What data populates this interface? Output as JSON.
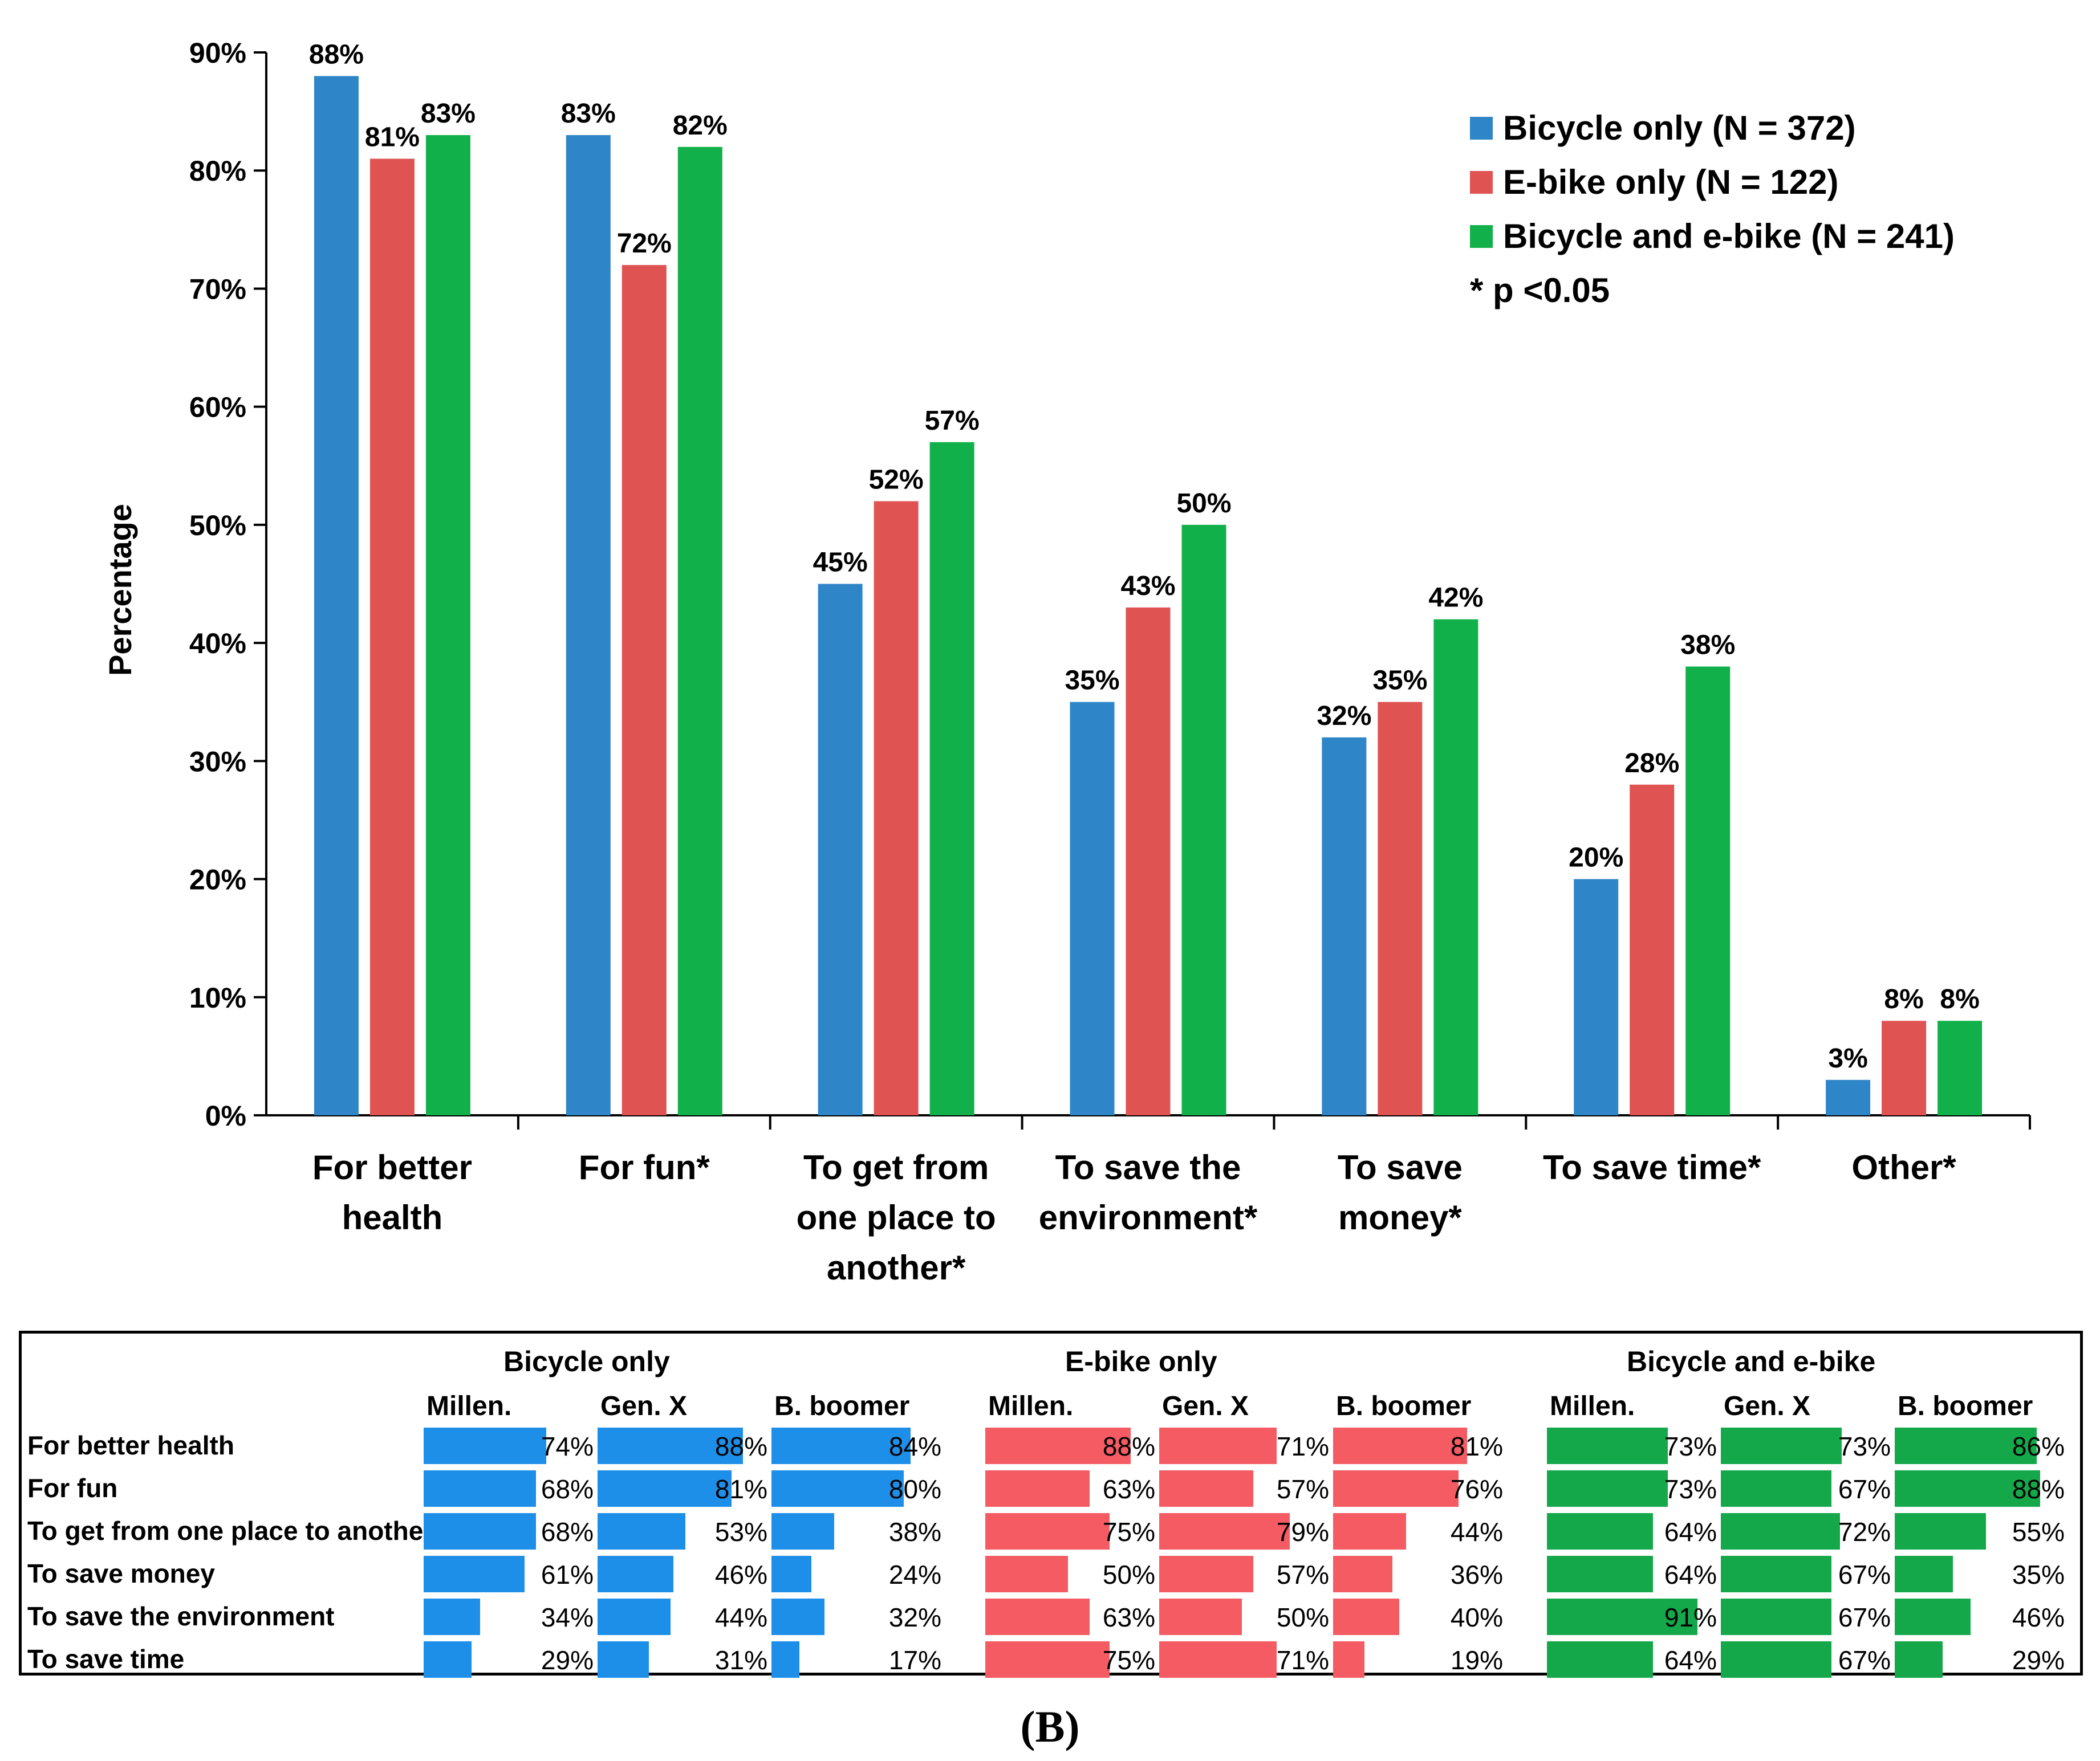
{
  "chart_data": [
    {
      "type": "bar",
      "title": "",
      "xlabel": "",
      "ylabel": "Percentage",
      "ylim": [
        0,
        90
      ],
      "yticks": [
        "0%",
        "10%",
        "20%",
        "30%",
        "40%",
        "50%",
        "60%",
        "70%",
        "80%",
        "90%"
      ],
      "categories": [
        [
          "For better",
          "health"
        ],
        [
          "For fun*"
        ],
        [
          "To get from",
          "one place to",
          "another*"
        ],
        [
          "To save the",
          "environment*"
        ],
        [
          "To save",
          "money*"
        ],
        [
          "To save time*"
        ],
        [
          "Other*"
        ]
      ],
      "series": [
        {
          "name": "Bicycle only",
          "n_label": "(N = 372)",
          "color": "#2E86C8",
          "values": [
            88,
            83,
            45,
            35,
            32,
            20,
            3
          ],
          "labels": [
            "88%",
            "83%",
            "45%",
            "35%",
            "32%",
            "20%",
            "3%"
          ]
        },
        {
          "name": "E-bike only",
          "n_label": "(N = 122)",
          "color": "#E05353",
          "values": [
            81,
            72,
            52,
            43,
            35,
            28,
            8
          ],
          "labels": [
            "81%",
            "72%",
            "52%",
            "43%",
            "35%",
            "28%",
            "8%"
          ]
        },
        {
          "name": "Bicycle and e-bike",
          "n_label": "(N = 241)",
          "color": "#12B04A",
          "values": [
            83,
            82,
            57,
            50,
            42,
            38,
            8
          ],
          "labels": [
            "83%",
            "82%",
            "57%",
            "50%",
            "42%",
            "38%",
            "8%"
          ]
        }
      ],
      "legend_note": "* p <0.05",
      "legend_position": "top-right"
    },
    {
      "type": "table",
      "groups": [
        {
          "title": "Bicycle only",
          "color": "#1E8FE8"
        },
        {
          "title": "E-bike only",
          "color": "#F45B63"
        },
        {
          "title": "Bicycle and e-bike",
          "color": "#14A84A"
        }
      ],
      "sub_columns": [
        "Millen.",
        "Gen. X",
        "B. boomer"
      ],
      "rows": [
        {
          "label": "For better health",
          "values": [
            [
              74,
              88,
              84
            ],
            [
              88,
              71,
              81
            ],
            [
              73,
              73,
              86
            ]
          ]
        },
        {
          "label": "For fun",
          "values": [
            [
              68,
              81,
              80
            ],
            [
              63,
              57,
              76
            ],
            [
              73,
              67,
              88
            ]
          ]
        },
        {
          "label": "To get from one place to another",
          "values": [
            [
              68,
              53,
              38
            ],
            [
              75,
              79,
              44
            ],
            [
              64,
              72,
              55
            ]
          ]
        },
        {
          "label": "To save money",
          "values": [
            [
              61,
              46,
              24
            ],
            [
              50,
              57,
              36
            ],
            [
              64,
              67,
              35
            ]
          ]
        },
        {
          "label": "To save the environment",
          "values": [
            [
              34,
              44,
              32
            ],
            [
              63,
              50,
              40
            ],
            [
              91,
              67,
              46
            ]
          ]
        },
        {
          "label": "To save time",
          "values": [
            [
              29,
              31,
              17
            ],
            [
              75,
              71,
              19
            ],
            [
              64,
              67,
              29
            ]
          ]
        }
      ]
    }
  ],
  "panel_label": "(B)"
}
